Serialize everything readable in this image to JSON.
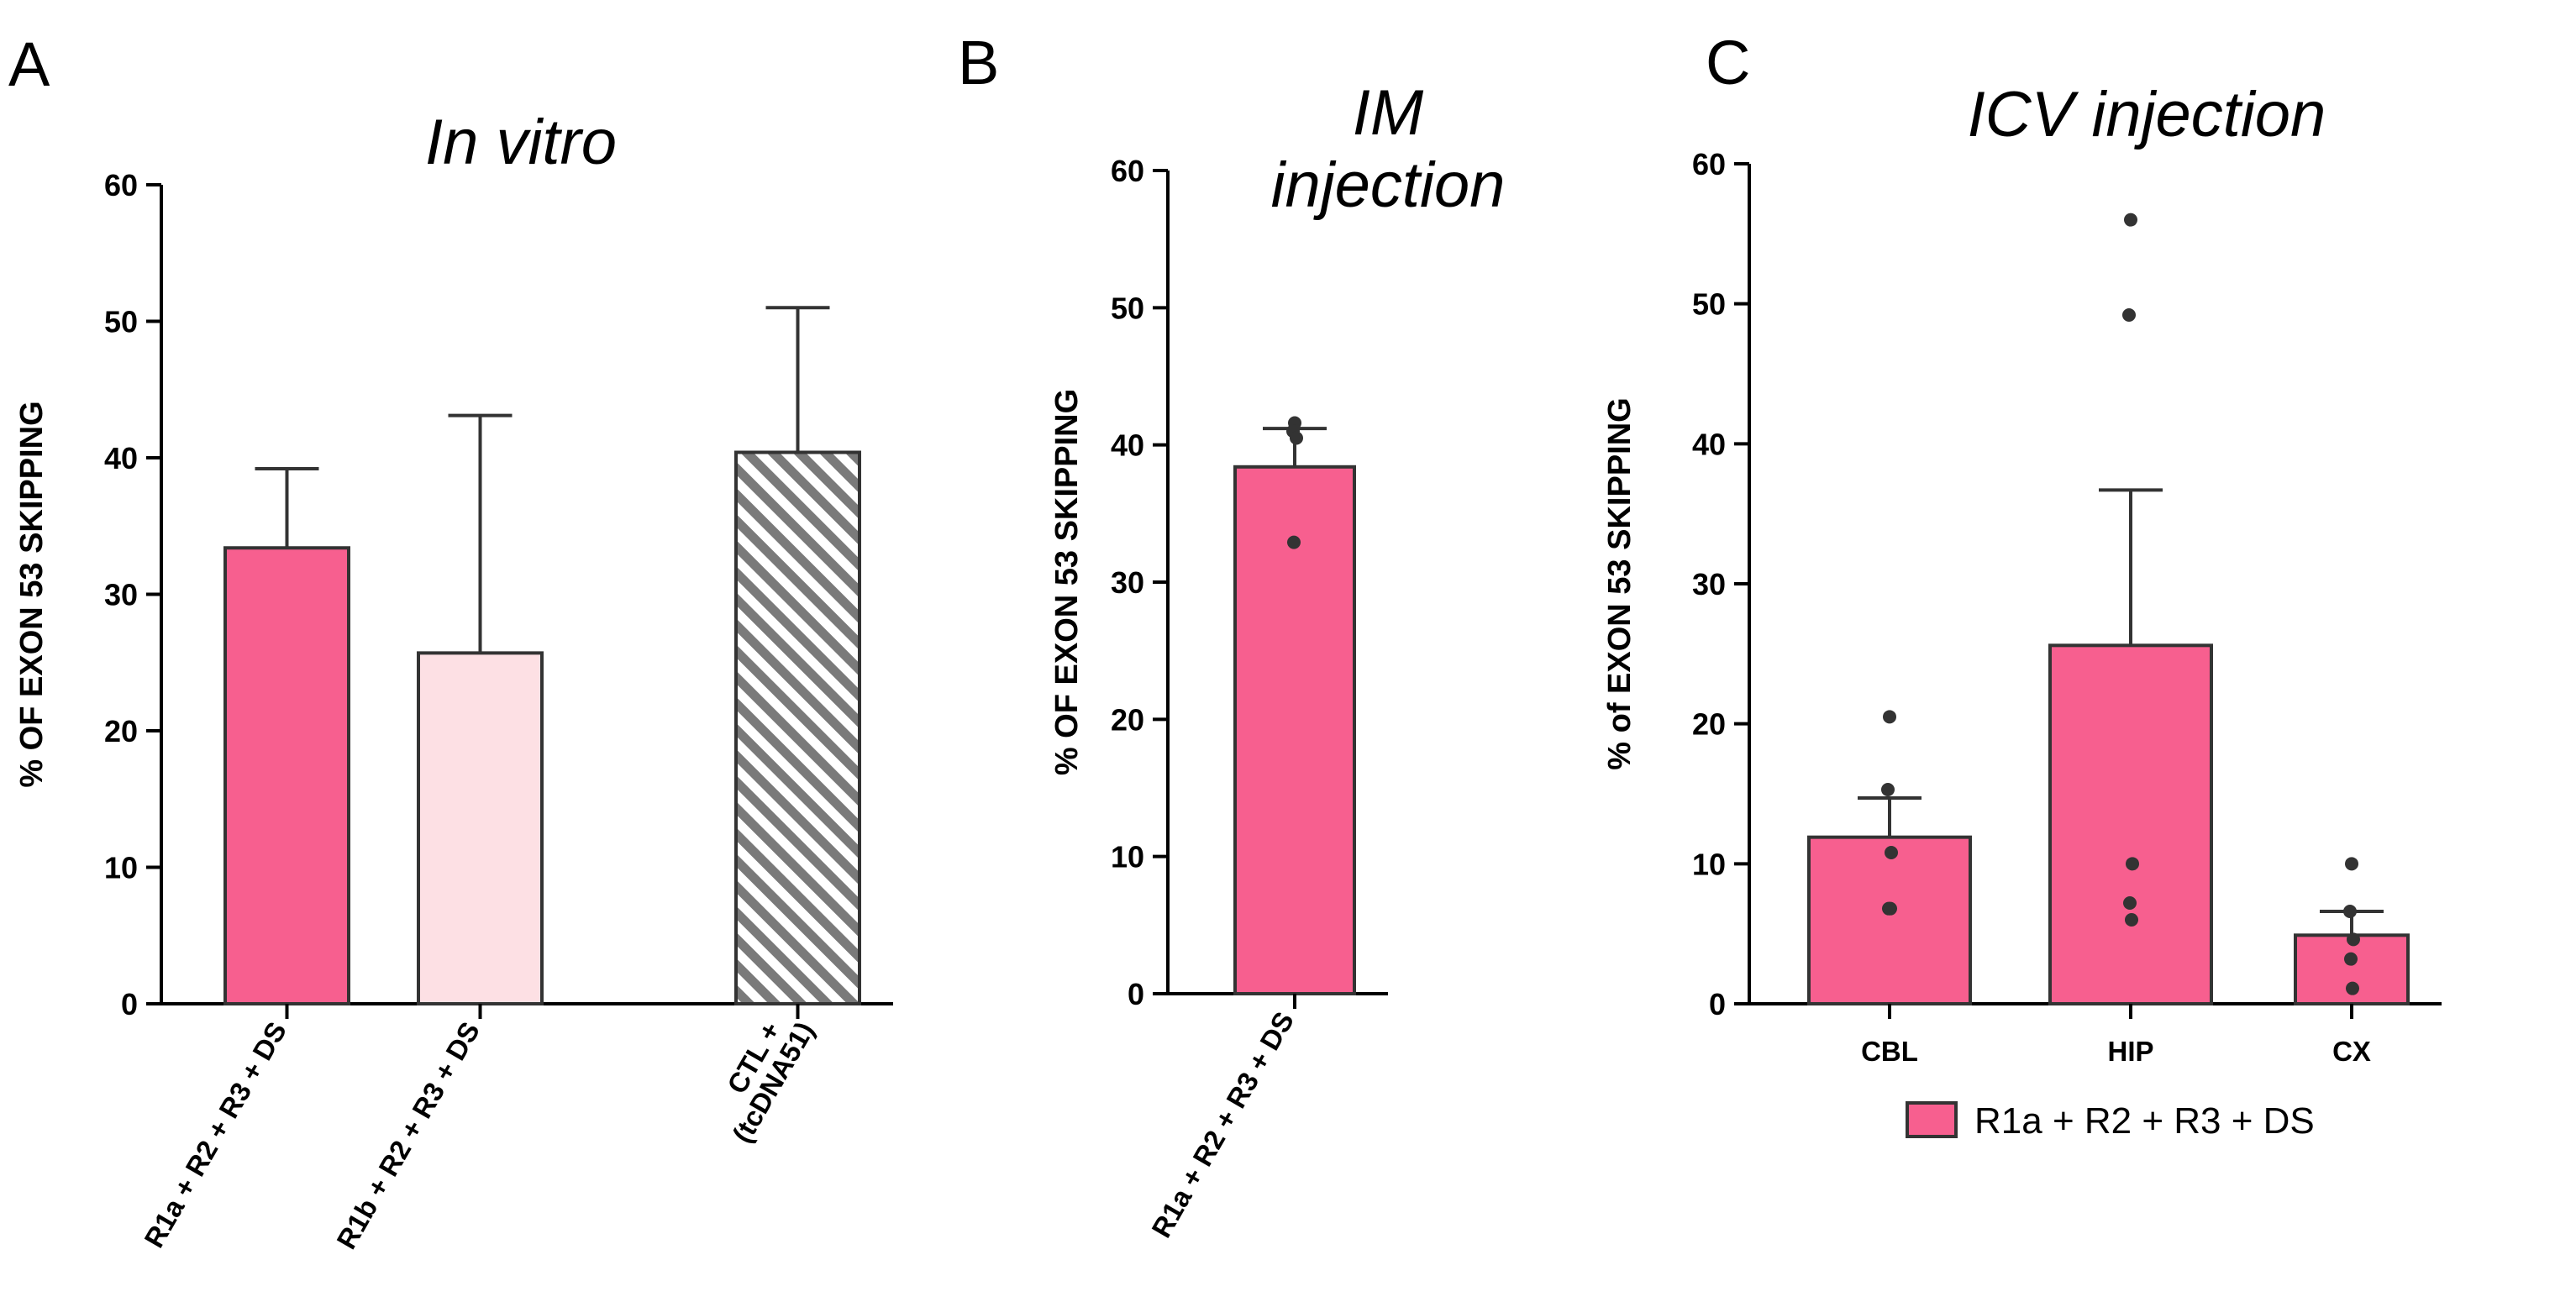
{
  "chart_data": [
    {
      "panel": "A",
      "type": "bar",
      "title": "In vitro",
      "ylabel": "% OF EXON 53 SKIPPING",
      "ylim": [
        0,
        60
      ],
      "yticks": [
        0,
        10,
        20,
        30,
        40,
        50,
        60
      ],
      "categories": [
        "R1a + R2 + R3 + DS",
        "R1b + R2 + R3 + DS",
        "CTL +\n(tcDNA51)"
      ],
      "values": [
        33.4,
        25.7,
        40.4
      ],
      "error_upper": [
        39.2,
        43.1,
        51.0
      ],
      "colors": [
        "#f75f8f",
        "#fde0e4",
        "hatch"
      ],
      "points": [
        [],
        [],
        []
      ]
    },
    {
      "panel": "B",
      "type": "bar",
      "title": "IM\ninjection",
      "ylabel": "% OF EXON 53 SKIPPING",
      "ylim": [
        0,
        60
      ],
      "yticks": [
        0,
        10,
        20,
        30,
        40,
        50,
        60
      ],
      "categories": [
        "R1a + R2 + R3 + DS"
      ],
      "values": [
        38.4
      ],
      "error_upper": [
        41.2
      ],
      "colors": [
        "#f75f8f"
      ],
      "points": [
        [
          41.6,
          41.0,
          40.5,
          32.9
        ]
      ]
    },
    {
      "panel": "C",
      "type": "bar",
      "title": "ICV injection",
      "ylabel": "% of EXON 53 SKIPPING",
      "ylim": [
        0,
        60
      ],
      "yticks": [
        0,
        10,
        20,
        30,
        40,
        50,
        60
      ],
      "categories": [
        "CBL",
        "HIP",
        "CX"
      ],
      "values": [
        11.9,
        25.6,
        4.9
      ],
      "error_upper": [
        14.7,
        36.7,
        6.6
      ],
      "colors": [
        "#f75f8f",
        "#f75f8f",
        "#f75f8f"
      ],
      "points": [
        [
          20.5,
          15.3,
          10.8,
          6.8,
          6.8
        ],
        [
          56.0,
          49.2,
          10.0,
          7.2,
          6.0
        ],
        [
          10.0,
          6.6,
          4.6,
          3.2,
          1.1
        ]
      ],
      "legend": "R1a + R2 + R3 + DS"
    }
  ]
}
